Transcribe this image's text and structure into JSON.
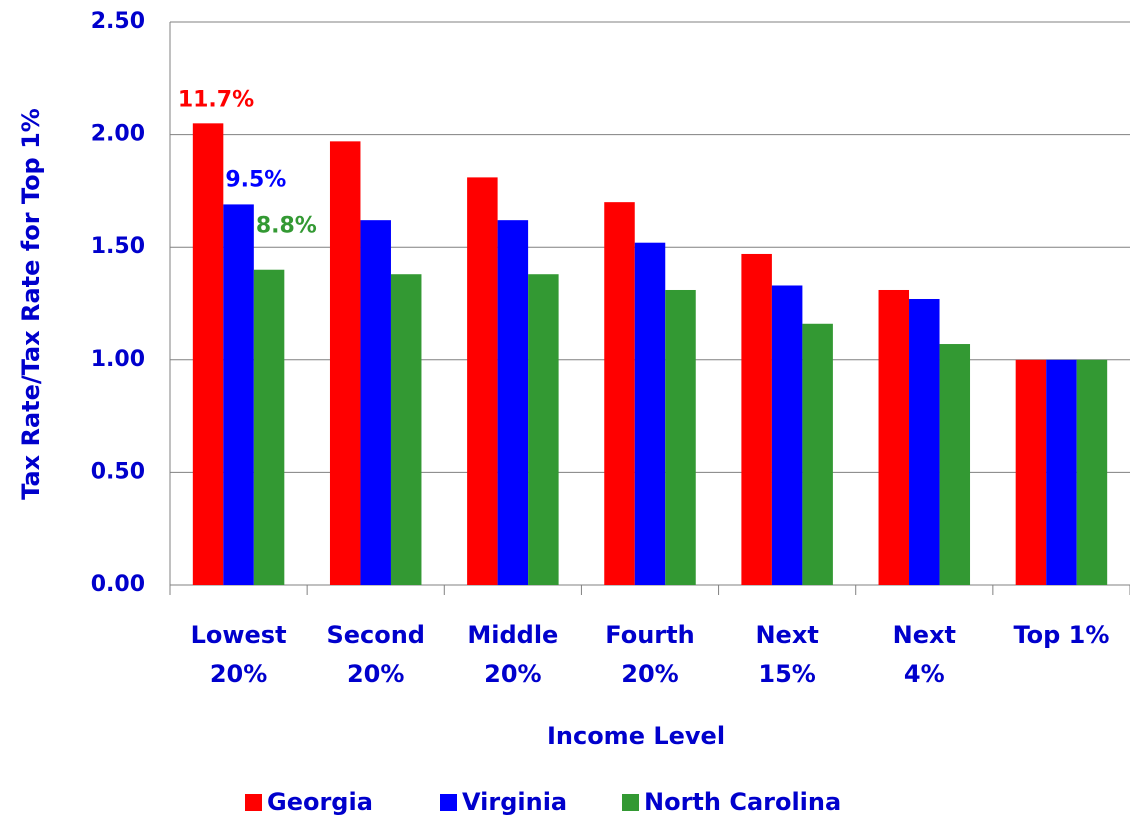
{
  "chart_data": {
    "type": "bar",
    "y_label": "Tax Rate/Tax Rate for Top 1%",
    "x_label": "Income Level",
    "categories": [
      [
        "Lowest",
        "20%"
      ],
      [
        "Second",
        "20%"
      ],
      [
        "Middle",
        "20%"
      ],
      [
        "Fourth",
        "20%"
      ],
      [
        "Next",
        "15%"
      ],
      [
        "Next",
        "4%"
      ],
      [
        "Top 1%"
      ]
    ],
    "series": [
      {
        "name": "Georgia",
        "color": "#ff0000",
        "values": [
          2.05,
          1.97,
          1.81,
          1.7,
          1.47,
          1.31,
          1.0
        ]
      },
      {
        "name": "Virginia",
        "color": "#0000ff",
        "values": [
          1.69,
          1.62,
          1.62,
          1.52,
          1.33,
          1.27,
          1.0
        ]
      },
      {
        "name": "North Carolina",
        "color": "#339933",
        "values": [
          1.4,
          1.38,
          1.38,
          1.31,
          1.16,
          1.07,
          1.0
        ]
      }
    ],
    "annotations": [
      "11.7%",
      "9.5%",
      "8.8%"
    ],
    "ylim": [
      0,
      2.5
    ],
    "yticks": [
      {
        "value": 0,
        "label": "0.00"
      },
      {
        "value": 0.5,
        "label": "0.50"
      },
      {
        "value": 1,
        "label": "1.00"
      },
      {
        "value": 1.5,
        "label": "1.50"
      },
      {
        "value": 2,
        "label": "2.00"
      },
      {
        "value": 2.5,
        "label": "2.50"
      }
    ],
    "grid": true
  }
}
